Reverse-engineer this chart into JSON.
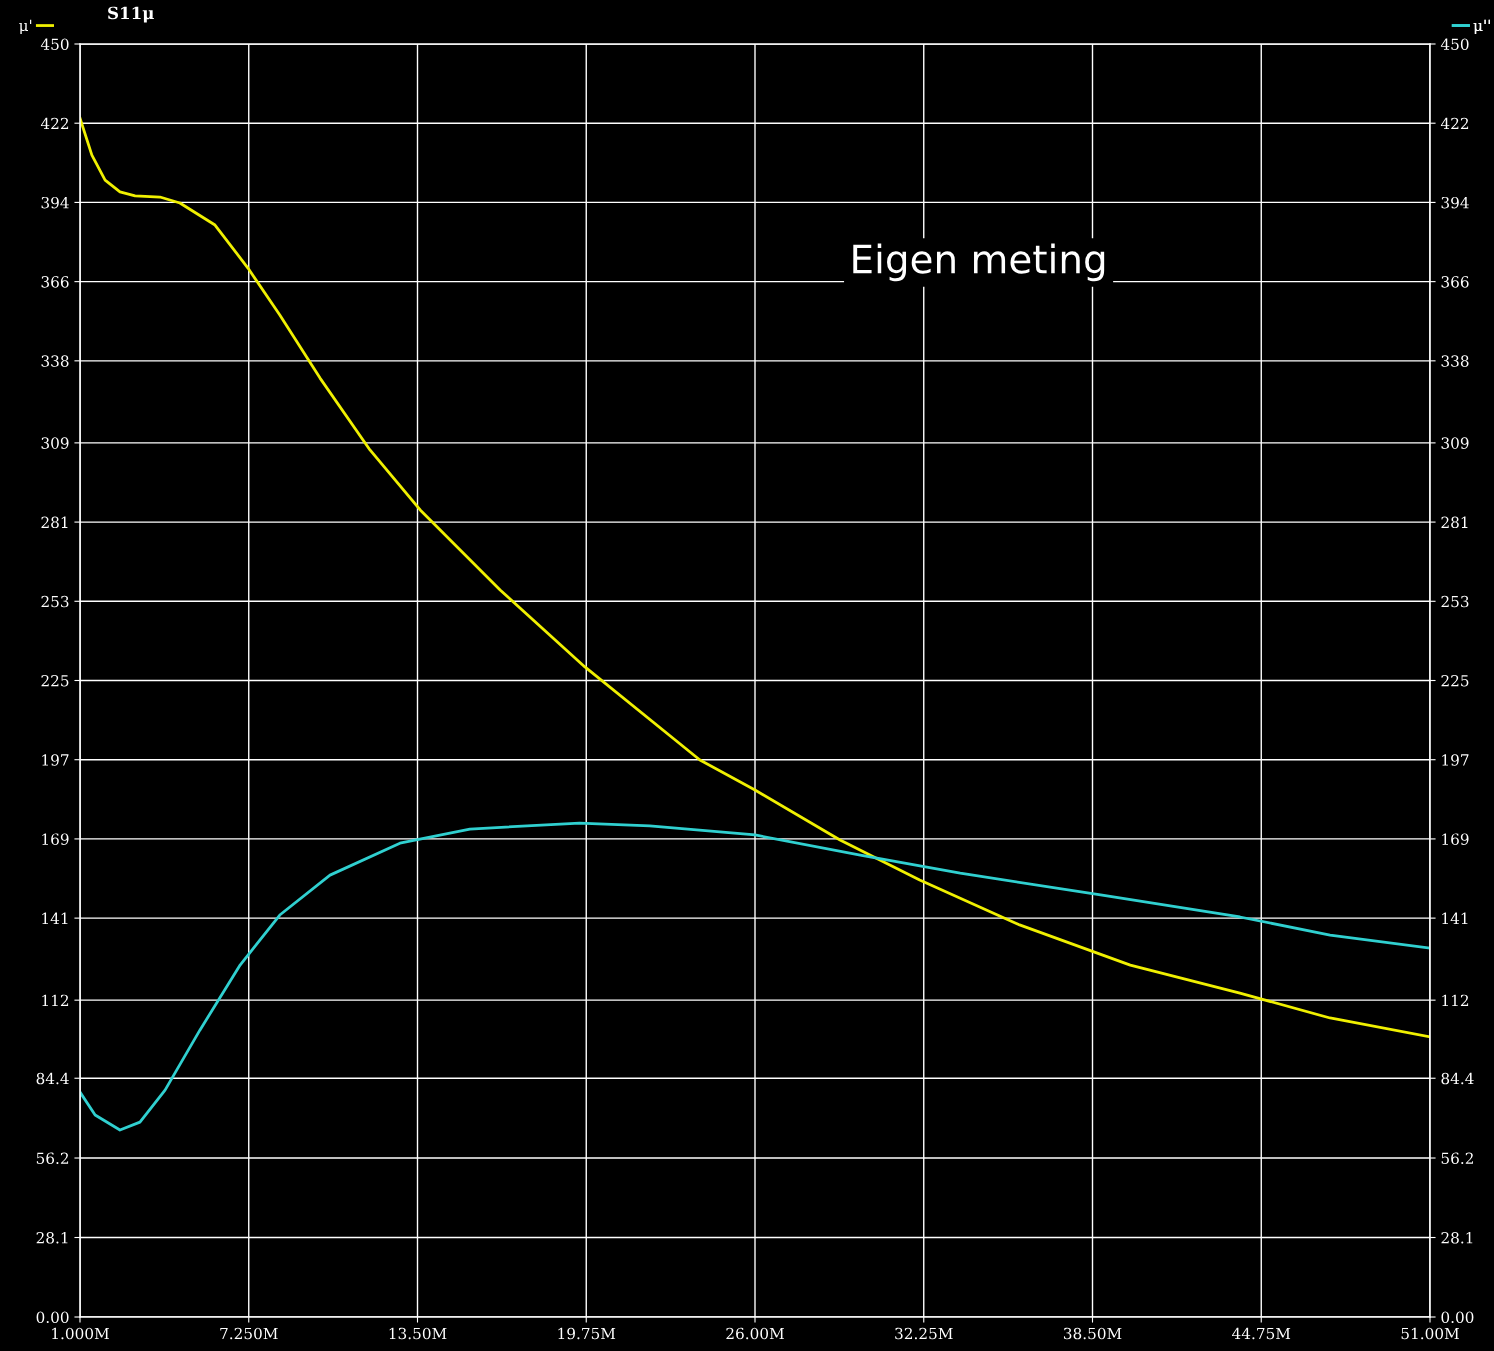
{
  "chart_data": {
    "type": "line",
    "title": "S11μ",
    "annotations": [
      "Eigen meting"
    ],
    "xlim": [
      1,
      51
    ],
    "xticks": [
      {
        "value": 1,
        "label": "1.000M"
      },
      {
        "value": 7.25,
        "label": "7.250M"
      },
      {
        "value": 13.5,
        "label": "13.50M"
      },
      {
        "value": 19.75,
        "label": "19.75M"
      },
      {
        "value": 26,
        "label": "26.00M"
      },
      {
        "value": 32.25,
        "label": "32.25M"
      },
      {
        "value": 38.5,
        "label": "38.50M"
      },
      {
        "value": 44.75,
        "label": "44.75M"
      },
      {
        "value": 51,
        "label": "51.00M"
      }
    ],
    "ylim": [
      0,
      450
    ],
    "yticks": [
      {
        "value": 0,
        "label": "0.00"
      },
      28.1,
      56.2,
      84.4,
      112,
      141,
      169,
      197,
      225,
      253,
      281,
      309,
      338,
      366,
      394,
      422,
      450
    ],
    "y2lim": [
      0,
      450
    ],
    "y2ticks": [
      {
        "value": 0,
        "label": "0.00"
      },
      28.1,
      56.2,
      84.4,
      112,
      141,
      169,
      197,
      225,
      253,
      281,
      309,
      338,
      366,
      394,
      422,
      450
    ],
    "grid": true,
    "legend": "top",
    "marker": "none",
    "line_style": "solid",
    "series": [
      {
        "name": "μ'",
        "color": "#f0f000",
        "x": [
          1,
          1.44,
          1.93,
          2.48,
          3.04,
          3.96,
          4.7,
          6.0,
          7.22,
          8.4,
          9.89,
          11.74,
          13.6,
          16.56,
          19.7,
          23.96,
          26.0,
          29.15,
          32.1,
          35.8,
          39.9,
          43.96,
          47.3,
          51
        ],
        "values": [
          423.8,
          410.7,
          401.9,
          397.7,
          396.3,
          395.9,
          393.8,
          386,
          370.8,
          354.2,
          331.9,
          306.5,
          285.3,
          257,
          229.8,
          196.9,
          186.3,
          168.6,
          154.5,
          138.6,
          124.4,
          114.5,
          105.7,
          99
        ]
      },
      {
        "name": "μ''",
        "color": "#30d0d0",
        "x": [
          1,
          1.56,
          2.48,
          3.22,
          4.15,
          5.44,
          6.93,
          8.4,
          10.26,
          12.85,
          15.44,
          19.5,
          22.1,
          26.0,
          29.9,
          33.6,
          38.8,
          43.96,
          47.3,
          51
        ],
        "values": [
          79.5,
          71.4,
          66.1,
          68.9,
          80.2,
          101.4,
          124.4,
          142.1,
          156.2,
          167.5,
          172.5,
          174.6,
          173.6,
          170.4,
          163.3,
          156.9,
          149.2,
          141.4,
          135,
          130.4
        ]
      }
    ]
  }
}
